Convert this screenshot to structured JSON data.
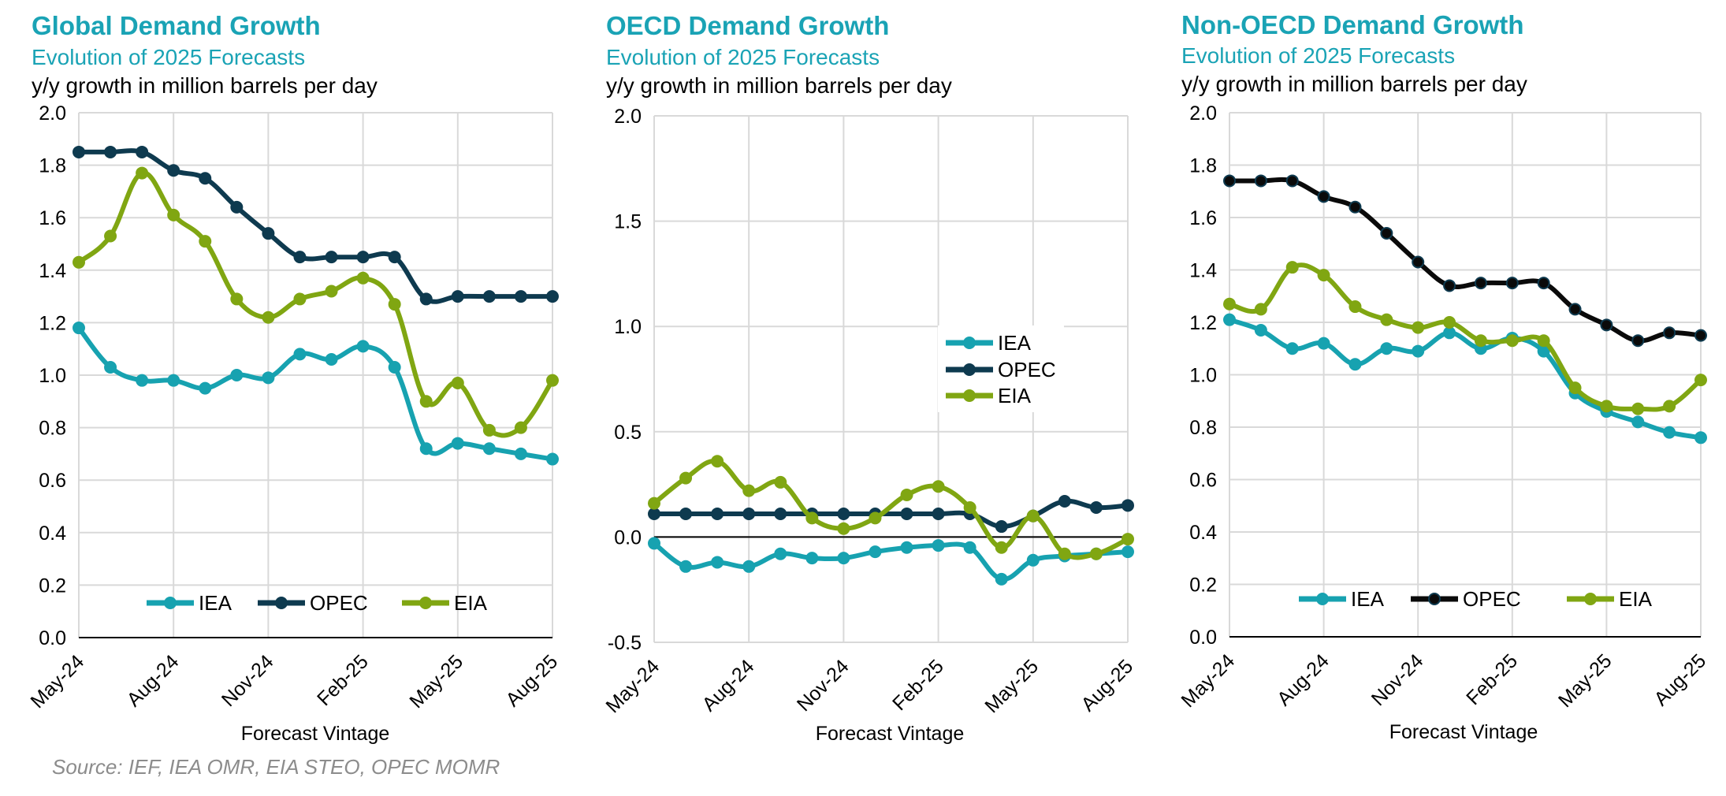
{
  "colors": {
    "IEA": "#17a2b0",
    "OPEC": "#0e3a4f",
    "OPEC_nonoecd": "#0a0a0a",
    "EIA": "#80a612",
    "title": "#1aa3b5",
    "grid": "#d9d9d9",
    "source": "#8c8c8c"
  },
  "source": "Source: IEF, IEA OMR, EIA STEO, OPEC MOMR",
  "chart_data": [
    {
      "type": "line",
      "title": "Global Demand Growth",
      "subtitle": "Evolution of 2025 Forecasts",
      "ylabel": "y/y growth in million barrels per day",
      "xlabel": "Forecast Vintage",
      "ylim": [
        0,
        2.0
      ],
      "yticks": [
        "0.0",
        "0.2",
        "0.4",
        "0.6",
        "0.8",
        "1.0",
        "1.2",
        "1.4",
        "1.6",
        "1.8",
        "2.0"
      ],
      "xticks": [
        "May-24",
        "Aug-24",
        "Nov-24",
        "Feb-25",
        "May-25",
        "Aug-25"
      ],
      "legend_position": "bottom",
      "series": [
        {
          "name": "IEA",
          "values": [
            1.18,
            1.03,
            0.98,
            0.98,
            0.95,
            1.0,
            0.99,
            1.08,
            1.06,
            1.11,
            1.03,
            0.72,
            0.74,
            0.72,
            0.7,
            0.68
          ]
        },
        {
          "name": "OPEC",
          "values": [
            1.85,
            1.85,
            1.85,
            1.78,
            1.75,
            1.64,
            1.54,
            1.45,
            1.45,
            1.45,
            1.45,
            1.29,
            1.3,
            1.3,
            1.3,
            1.3
          ]
        },
        {
          "name": "EIA",
          "values": [
            1.43,
            1.53,
            1.77,
            1.61,
            1.51,
            1.29,
            1.22,
            1.29,
            1.32,
            1.37,
            1.27,
            0.9,
            0.97,
            0.79,
            0.8,
            0.98
          ]
        }
      ]
    },
    {
      "type": "line",
      "title": "OECD Demand Growth",
      "subtitle": "Evolution of 2025 Forecasts",
      "ylabel": "y/y growth in million barrels per day",
      "xlabel": "Forecast Vintage",
      "ylim": [
        -0.5,
        2.0
      ],
      "yticks": [
        "-0.5",
        "0.0",
        "0.5",
        "1.0",
        "1.5",
        "2.0"
      ],
      "xticks": [
        "May-24",
        "Aug-24",
        "Nov-24",
        "Feb-25",
        "May-25",
        "Aug-25"
      ],
      "legend_position": "center-right",
      "series": [
        {
          "name": "IEA",
          "values": [
            -0.03,
            -0.14,
            -0.12,
            -0.14,
            -0.08,
            -0.1,
            -0.1,
            -0.07,
            -0.05,
            -0.04,
            -0.05,
            -0.2,
            -0.11,
            -0.09,
            -0.08,
            -0.07
          ]
        },
        {
          "name": "OPEC",
          "values": [
            0.11,
            0.11,
            0.11,
            0.11,
            0.11,
            0.11,
            0.11,
            0.11,
            0.11,
            0.11,
            0.11,
            0.05,
            0.1,
            0.17,
            0.14,
            0.15
          ]
        },
        {
          "name": "EIA",
          "values": [
            0.16,
            0.28,
            0.36,
            0.22,
            0.26,
            0.09,
            0.04,
            0.09,
            0.2,
            0.24,
            0.14,
            -0.05,
            0.1,
            -0.08,
            -0.08,
            -0.01
          ]
        }
      ]
    },
    {
      "type": "line",
      "title": "Non-OECD Demand Growth",
      "subtitle": "Evolution of 2025 Forecasts",
      "ylabel": "y/y growth in million barrels per day",
      "xlabel": "Forecast Vintage",
      "ylim": [
        0,
        2.0
      ],
      "yticks": [
        "0.0",
        "0.2",
        "0.4",
        "0.6",
        "0.8",
        "1.0",
        "1.2",
        "1.4",
        "1.6",
        "1.8",
        "2.0"
      ],
      "xticks": [
        "May-24",
        "Aug-24",
        "Nov-24",
        "Feb-25",
        "May-25",
        "Aug-25"
      ],
      "legend_position": "bottom",
      "series": [
        {
          "name": "IEA",
          "values": [
            1.21,
            1.17,
            1.1,
            1.12,
            1.04,
            1.1,
            1.09,
            1.16,
            1.1,
            1.14,
            1.09,
            0.93,
            0.86,
            0.82,
            0.78,
            0.76
          ]
        },
        {
          "name": "OPEC",
          "values": [
            1.74,
            1.74,
            1.74,
            1.68,
            1.64,
            1.54,
            1.43,
            1.34,
            1.35,
            1.35,
            1.35,
            1.25,
            1.19,
            1.13,
            1.16,
            1.15
          ]
        },
        {
          "name": "EIA",
          "values": [
            1.27,
            1.25,
            1.41,
            1.38,
            1.26,
            1.21,
            1.18,
            1.2,
            1.13,
            1.13,
            1.13,
            0.95,
            0.88,
            0.87,
            0.88,
            0.98
          ]
        }
      ]
    }
  ]
}
